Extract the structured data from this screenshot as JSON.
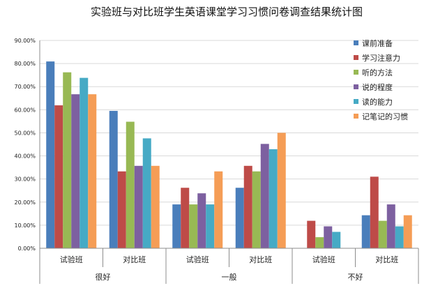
{
  "chart_data": {
    "type": "bar",
    "title": "实验班与对比班学生英语课堂学习习惯问卷调查结果统计图",
    "ylim": [
      0,
      90
    ],
    "yticks": [
      "0.00%",
      "10.00%",
      "20.00%",
      "30.00%",
      "40.00%",
      "50.00%",
      "60.00%",
      "70.00%",
      "80.00%",
      "90.00%"
    ],
    "grid": true,
    "legend_position": "top-right",
    "groups": [
      {
        "label": "很好",
        "categories": [
          "试验班",
          "对比班"
        ]
      },
      {
        "label": "一般",
        "categories": [
          "试验班",
          "对比班"
        ]
      },
      {
        "label": "不好",
        "categories": [
          "试验班",
          "对比班"
        ]
      }
    ],
    "series": [
      {
        "name": "课前准备",
        "color": "#4a7ebb",
        "values": [
          80.9,
          59.5,
          19.0,
          26.2,
          0,
          14.3
        ]
      },
      {
        "name": "学习注意力",
        "color": "#be4b48",
        "values": [
          61.9,
          33.3,
          26.2,
          35.7,
          11.9,
          31.0
        ]
      },
      {
        "name": "听的方法",
        "color": "#98b954",
        "values": [
          76.2,
          54.8,
          19.0,
          33.3,
          4.8,
          11.9
        ]
      },
      {
        "name": "说的程度",
        "color": "#7d60a0",
        "values": [
          66.7,
          35.7,
          23.8,
          45.2,
          9.5,
          19.0
        ]
      },
      {
        "name": "读的能力",
        "color": "#46aac5",
        "values": [
          73.8,
          47.6,
          19.0,
          42.9,
          7.1,
          9.5
        ]
      },
      {
        "name": "记笔记的习惯",
        "color": "#f59d56",
        "values": [
          66.7,
          35.7,
          33.3,
          50.0,
          0,
          14.3
        ]
      }
    ]
  }
}
